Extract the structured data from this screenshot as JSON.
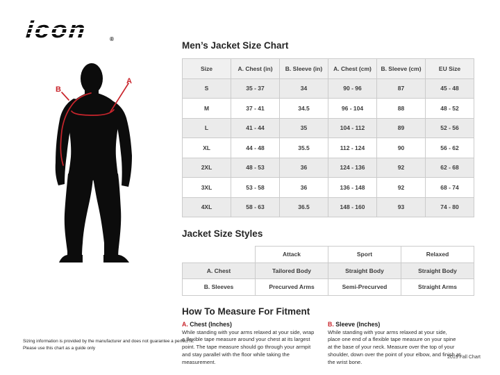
{
  "brand": {
    "logo_text": "icon",
    "registered": "®"
  },
  "figure": {
    "label_a": "A",
    "label_b": "B"
  },
  "size_chart": {
    "title": "Men’s Jacket Size Chart",
    "headers": [
      "Size",
      "A. Chest (in)",
      "B. Sleeve (in)",
      "A. Chest (cm)",
      "B. Sleeve (cm)",
      "EU Size"
    ],
    "rows": [
      [
        "S",
        "35 - 37",
        "34",
        "90 - 96",
        "87",
        "45 - 48"
      ],
      [
        "M",
        "37 - 41",
        "34.5",
        "96 - 104",
        "88",
        "48 - 52"
      ],
      [
        "L",
        "41 - 44",
        "35",
        "104 - 112",
        "89",
        "52 - 56"
      ],
      [
        "XL",
        "44 - 48",
        "35.5",
        "112 - 124",
        "90",
        "56 - 62"
      ],
      [
        "2XL",
        "48 - 53",
        "36",
        "124 - 136",
        "92",
        "62 - 68"
      ],
      [
        "3XL",
        "53 - 58",
        "36",
        "136 - 148",
        "92",
        "68 - 74"
      ],
      [
        "4XL",
        "58 - 63",
        "36.5",
        "148 - 160",
        "93",
        "74 - 80"
      ]
    ]
  },
  "style_chart": {
    "title": "Jacket Size Styles",
    "headers": [
      "",
      "Attack",
      "Sport",
      "Relaxed"
    ],
    "rows": [
      [
        "A. Chest",
        "Tailored Body",
        "Straight Body",
        "Straight Body"
      ],
      [
        "B. Sleeves",
        "Precurved Arms",
        "Semi-Precurved",
        "Straight Arms"
      ]
    ]
  },
  "measure": {
    "title": "How To Measure For Fitment",
    "sections": [
      {
        "label": "A.",
        "heading": "Chest (Inches)",
        "body": "While standing with your arms relaxed at your side, wrap a flexible tape measure around your chest at its largest point. The tape measure should go through your armpit and stay parallel with the floor while taking the measurement."
      },
      {
        "label": "B.",
        "heading": "Sleeve (Inches)",
        "body": "While standing with your arms relaxed at your side, place one end of a flexible tape measure on your spine at the base of your neck. Measure over the top of your shoulder, down over the point of your elbow, and finish at the wrist bone."
      }
    ]
  },
  "footer": {
    "disclaimer_line1": "Sizing information is provided by the manufacturer and does not guarantee a perfect fit.",
    "disclaimer_line2": "Please use this chart as a guide only",
    "chart_version": "2019 Fall Chart"
  },
  "colors": {
    "accent_red": "#c9252c",
    "silhouette": "#0c0c0c",
    "row_alt": "#ebebeb",
    "header_bg": "#f0f0f0",
    "border": "#cbcbcb"
  }
}
